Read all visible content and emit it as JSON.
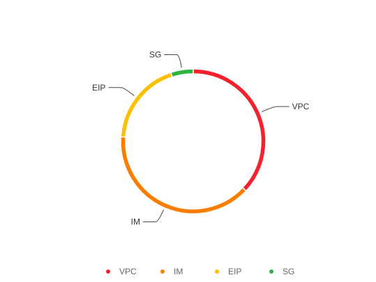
{
  "chart_data": {
    "type": "pie",
    "variant": "donut",
    "categories": [
      "VPC",
      "IM",
      "EIP",
      "SG"
    ],
    "values": [
      37,
      39,
      19,
      5
    ],
    "colors": [
      "#f5222d",
      "#fa7d00",
      "#fac100",
      "#2fb33f"
    ],
    "legend": {
      "position": "bottom",
      "items": [
        "VPC",
        "IM",
        "EIP",
        "SG"
      ]
    }
  }
}
